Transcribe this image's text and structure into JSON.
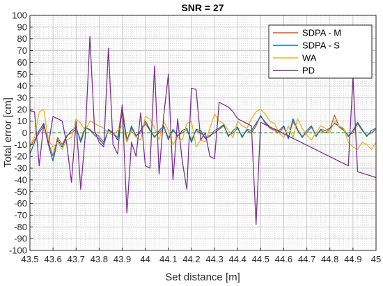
{
  "chart_data": {
    "type": "line",
    "title": "SNR = 27",
    "xlabel": "Set distance [m]",
    "ylabel": "Total error [cm]",
    "xlim": [
      43.5,
      45
    ],
    "ylim": [
      -100,
      100
    ],
    "xticks": [
      43.5,
      43.6,
      43.7,
      43.8,
      43.9,
      44,
      44.1,
      44.2,
      44.3,
      44.4,
      44.5,
      44.6,
      44.7,
      44.8,
      44.9,
      45
    ],
    "xtick_labels": [
      "43.5",
      "43.6",
      "43.7",
      "43.8",
      "43.9",
      "44",
      "44.1",
      "44.2",
      "44.3",
      "44.4",
      "44.5",
      "44.6",
      "44.7",
      "44.8",
      "44.9",
      "45"
    ],
    "yticks": [
      -100,
      -90,
      -80,
      -70,
      -60,
      -50,
      -40,
      -30,
      -20,
      -10,
      0,
      10,
      20,
      30,
      40,
      50,
      60,
      70,
      80,
      90,
      100
    ],
    "grid": true,
    "minor_grid": true,
    "legend_position": "top-right",
    "reference_line": {
      "y": 0,
      "color": "#00aa00",
      "style": "dashed"
    },
    "series": [
      {
        "name": "SDPA - M",
        "color": "#d95319",
        "x": [
          43.5,
          43.52,
          43.54,
          43.56,
          43.58,
          43.6,
          43.62,
          43.64,
          43.66,
          43.68,
          43.7,
          43.72,
          43.74,
          43.76,
          43.78,
          43.8,
          43.82,
          43.84,
          43.86,
          43.88,
          43.9,
          43.92,
          43.94,
          43.96,
          43.98,
          44.0,
          44.02,
          44.04,
          44.06,
          44.08,
          44.1,
          44.12,
          44.14,
          44.16,
          44.18,
          44.2,
          44.22,
          44.24,
          44.26,
          44.28,
          44.3,
          44.32,
          44.34,
          44.36,
          44.38,
          44.4,
          44.42,
          44.44,
          44.46,
          44.48,
          44.5,
          44.52,
          44.54,
          44.56,
          44.58,
          44.6,
          44.62,
          44.64,
          44.66,
          44.68,
          44.7,
          44.72,
          44.74,
          44.76,
          44.78,
          44.8,
          44.82,
          44.84,
          44.86,
          44.88,
          44.9,
          44.92,
          44.94,
          44.96,
          44.98,
          45.0
        ],
        "y": [
          -12,
          -6,
          0,
          6,
          -8,
          -20,
          -4,
          -10,
          -2,
          0,
          3,
          -6,
          5,
          2,
          0,
          -3,
          -8,
          2,
          0,
          -4,
          22,
          -6,
          4,
          -2,
          0,
          8,
          2,
          -3,
          0,
          5,
          -4,
          2,
          -2,
          0,
          3,
          -6,
          2,
          0,
          -4,
          -2,
          0,
          3,
          6,
          -2,
          0,
          4,
          -3,
          2,
          0,
          6,
          15,
          8,
          4,
          2,
          0,
          5,
          -4,
          10,
          2,
          -3,
          0,
          5,
          -2,
          2,
          0,
          3,
          15,
          5,
          2,
          -2,
          0,
          8,
          2,
          -2,
          0,
          3
        ]
      },
      {
        "name": "SDPA - S",
        "color": "#0072bd",
        "x": [
          43.5,
          43.52,
          43.54,
          43.56,
          43.58,
          43.6,
          43.62,
          43.64,
          43.66,
          43.68,
          43.7,
          43.72,
          43.74,
          43.76,
          43.78,
          43.8,
          43.82,
          43.84,
          43.86,
          43.88,
          43.9,
          43.92,
          43.94,
          43.96,
          43.98,
          44.0,
          44.02,
          44.04,
          44.06,
          44.08,
          44.1,
          44.12,
          44.14,
          44.16,
          44.18,
          44.2,
          44.22,
          44.24,
          44.26,
          44.28,
          44.3,
          44.32,
          44.34,
          44.36,
          44.38,
          44.4,
          44.42,
          44.44,
          44.46,
          44.48,
          44.5,
          44.52,
          44.54,
          44.56,
          44.58,
          44.6,
          44.62,
          44.64,
          44.66,
          44.68,
          44.7,
          44.72,
          44.74,
          44.76,
          44.78,
          44.8,
          44.82,
          44.84,
          44.86,
          44.88,
          44.9,
          44.92,
          44.94,
          44.96,
          44.98,
          45.0
        ],
        "y": [
          -18,
          -8,
          2,
          8,
          -10,
          -24,
          -6,
          -12,
          -3,
          2,
          5,
          -8,
          4,
          3,
          -2,
          -5,
          -10,
          3,
          0,
          -6,
          18,
          -8,
          6,
          -3,
          2,
          10,
          3,
          -4,
          2,
          6,
          -6,
          3,
          -3,
          2,
          4,
          -8,
          3,
          2,
          -5,
          -3,
          2,
          4,
          7,
          -3,
          2,
          5,
          -4,
          3,
          2,
          8,
          14,
          9,
          5,
          3,
          2,
          6,
          -5,
          12,
          3,
          -4,
          2,
          6,
          -3,
          3,
          2,
          4,
          8,
          6,
          3,
          -3,
          2,
          9,
          3,
          -3,
          2,
          4
        ]
      },
      {
        "name": "WA",
        "color": "#edb120",
        "x": [
          43.5,
          43.52,
          43.54,
          43.56,
          43.58,
          43.6,
          43.62,
          43.64,
          43.66,
          43.68,
          43.7,
          43.72,
          43.74,
          43.76,
          43.78,
          43.8,
          43.82,
          43.84,
          43.86,
          43.88,
          43.9,
          43.92,
          43.94,
          43.96,
          43.98,
          44.0,
          44.02,
          44.04,
          44.06,
          44.08,
          44.1,
          44.12,
          44.14,
          44.16,
          44.18,
          44.2,
          44.22,
          44.24,
          44.26,
          44.28,
          44.3,
          44.32,
          44.34,
          44.36,
          44.38,
          44.4,
          44.42,
          44.44,
          44.46,
          44.48,
          44.5,
          44.52,
          44.54,
          44.56,
          44.58,
          44.6,
          44.62,
          44.64,
          44.66,
          44.68,
          44.7,
          44.72,
          44.74,
          44.76,
          44.78,
          44.8,
          44.82,
          44.84,
          44.86,
          44.88,
          44.9,
          44.92,
          44.94,
          44.96,
          44.98,
          45.0
        ],
        "y": [
          -10,
          -4,
          18,
          20,
          -6,
          -12,
          -8,
          -14,
          -6,
          -4,
          12,
          8,
          2,
          10,
          8,
          6,
          4,
          0,
          -2,
          2,
          6,
          -8,
          2,
          -4,
          -6,
          14,
          12,
          4,
          -6,
          10,
          2,
          -10,
          -4,
          -6,
          8,
          10,
          -12,
          -6,
          -8,
          4,
          16,
          10,
          8,
          2,
          -4,
          10,
          6,
          4,
          12,
          18,
          20,
          16,
          10,
          8,
          0,
          -4,
          6,
          -4,
          12,
          4,
          -2,
          -6,
          0,
          6,
          4,
          0,
          10,
          6,
          4,
          -8,
          -12,
          -14,
          -8,
          -10,
          -14,
          -8
        ]
      },
      {
        "name": "PD",
        "color": "#7e2f8e",
        "x": [
          43.5,
          43.52,
          43.54,
          43.56,
          43.58,
          43.6,
          43.62,
          43.64,
          43.66,
          43.68,
          43.7,
          43.72,
          43.74,
          43.76,
          43.78,
          43.8,
          43.82,
          43.84,
          43.86,
          43.88,
          43.9,
          43.92,
          43.94,
          43.96,
          43.98,
          44.0,
          44.02,
          44.04,
          44.06,
          44.08,
          44.1,
          44.12,
          44.14,
          44.16,
          44.18,
          44.2,
          44.22,
          44.24,
          44.26,
          44.28,
          44.3,
          44.32,
          44.34,
          44.36,
          44.38,
          44.4,
          44.42,
          44.44,
          44.46,
          44.48,
          44.5,
          44.88,
          44.9,
          44.92,
          45.0
        ],
        "y": [
          19,
          18,
          -28,
          8,
          -10,
          14,
          12,
          10,
          -10,
          -42,
          10,
          -48,
          -2,
          82,
          2,
          -8,
          -12,
          72,
          -10,
          -18,
          24,
          -68,
          -8,
          -20,
          17,
          -28,
          -30,
          57,
          -35,
          15,
          50,
          -40,
          12,
          -24,
          -48,
          38,
          37,
          -6,
          0,
          -20,
          -22,
          26,
          24,
          22,
          18,
          12,
          10,
          8,
          6,
          -78,
          9,
          -28,
          48,
          -33,
          -38
        ]
      }
    ]
  }
}
